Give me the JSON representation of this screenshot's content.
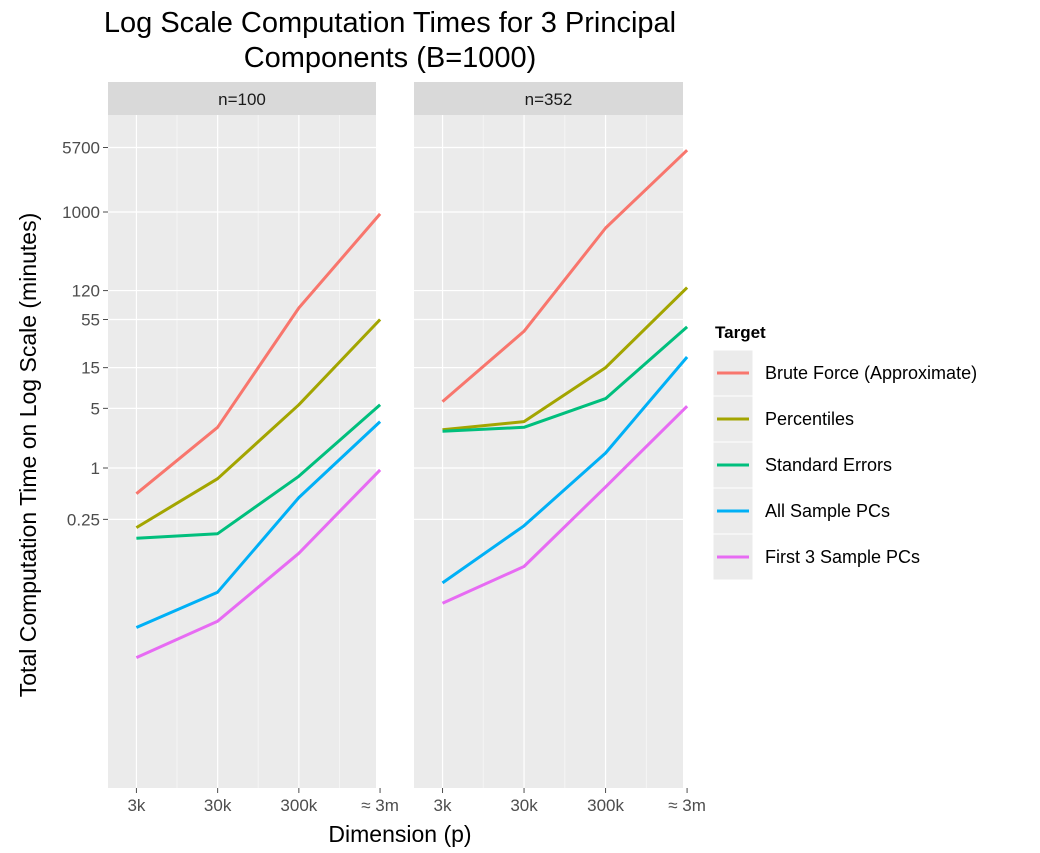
{
  "chart_data": {
    "type": "line",
    "title_lines": [
      "Log Scale Computation Times for 3 Principal",
      "Components (B=1000)"
    ],
    "xlabel": "Dimension (p)",
    "ylabel": "Total Computation Time on Log Scale (minutes)",
    "y_scale": "log",
    "ylim": [
      0.005,
      10000
    ],
    "y_ticks": [
      0.25,
      1,
      5,
      15,
      55,
      120,
      1000,
      5700
    ],
    "y_tick_labels": [
      "0.25",
      "1",
      "5",
      "15",
      "55",
      "120",
      "1000",
      "5700"
    ],
    "categories": [
      "3k",
      "30k",
      "300k",
      "≈ 3m"
    ],
    "grid": true,
    "legend_title": "Target",
    "legend_position": "right",
    "panels": [
      {
        "label": "n=100",
        "series": [
          {
            "name": "Brute Force (Approximate)",
            "values": [
              0.5,
              3,
              75,
              950
            ]
          },
          {
            "name": "Percentiles",
            "values": [
              0.2,
              0.75,
              5.5,
              55
            ]
          },
          {
            "name": "Standard Errors",
            "values": [
              0.15,
              0.17,
              0.8,
              5.5
            ]
          },
          {
            "name": "All Sample PCs",
            "values": [
              0.0135,
              0.035,
              0.45,
              3.5
            ]
          },
          {
            "name": "First 3 Sample PCs",
            "values": [
              0.006,
              0.016,
              0.1,
              0.95
            ]
          }
        ]
      },
      {
        "label": "n=352",
        "series": [
          {
            "name": "Brute Force (Approximate)",
            "values": [
              6,
              40,
              650,
              5300
            ]
          },
          {
            "name": "Percentiles",
            "values": [
              2.8,
              3.5,
              15,
              130
            ]
          },
          {
            "name": "Standard Errors",
            "values": [
              2.7,
              3,
              6.5,
              45
            ]
          },
          {
            "name": "All Sample PCs",
            "values": [
              0.045,
              0.21,
              1.5,
              20
            ]
          },
          {
            "name": "First 3 Sample PCs",
            "values": [
              0.026,
              0.07,
              0.6,
              5.3
            ]
          }
        ]
      }
    ],
    "series_colors": {
      "Brute Force (Approximate)": "#F8766D",
      "Percentiles": "#A3A500",
      "Standard Errors": "#00BF7D",
      "All Sample PCs": "#00B0F6",
      "First 3 Sample PCs": "#E76BF3"
    }
  },
  "colors": {
    "panel_background": "#EBEBEB",
    "strip_background": "#D9D9D9",
    "gridline": "#FFFFFF"
  }
}
